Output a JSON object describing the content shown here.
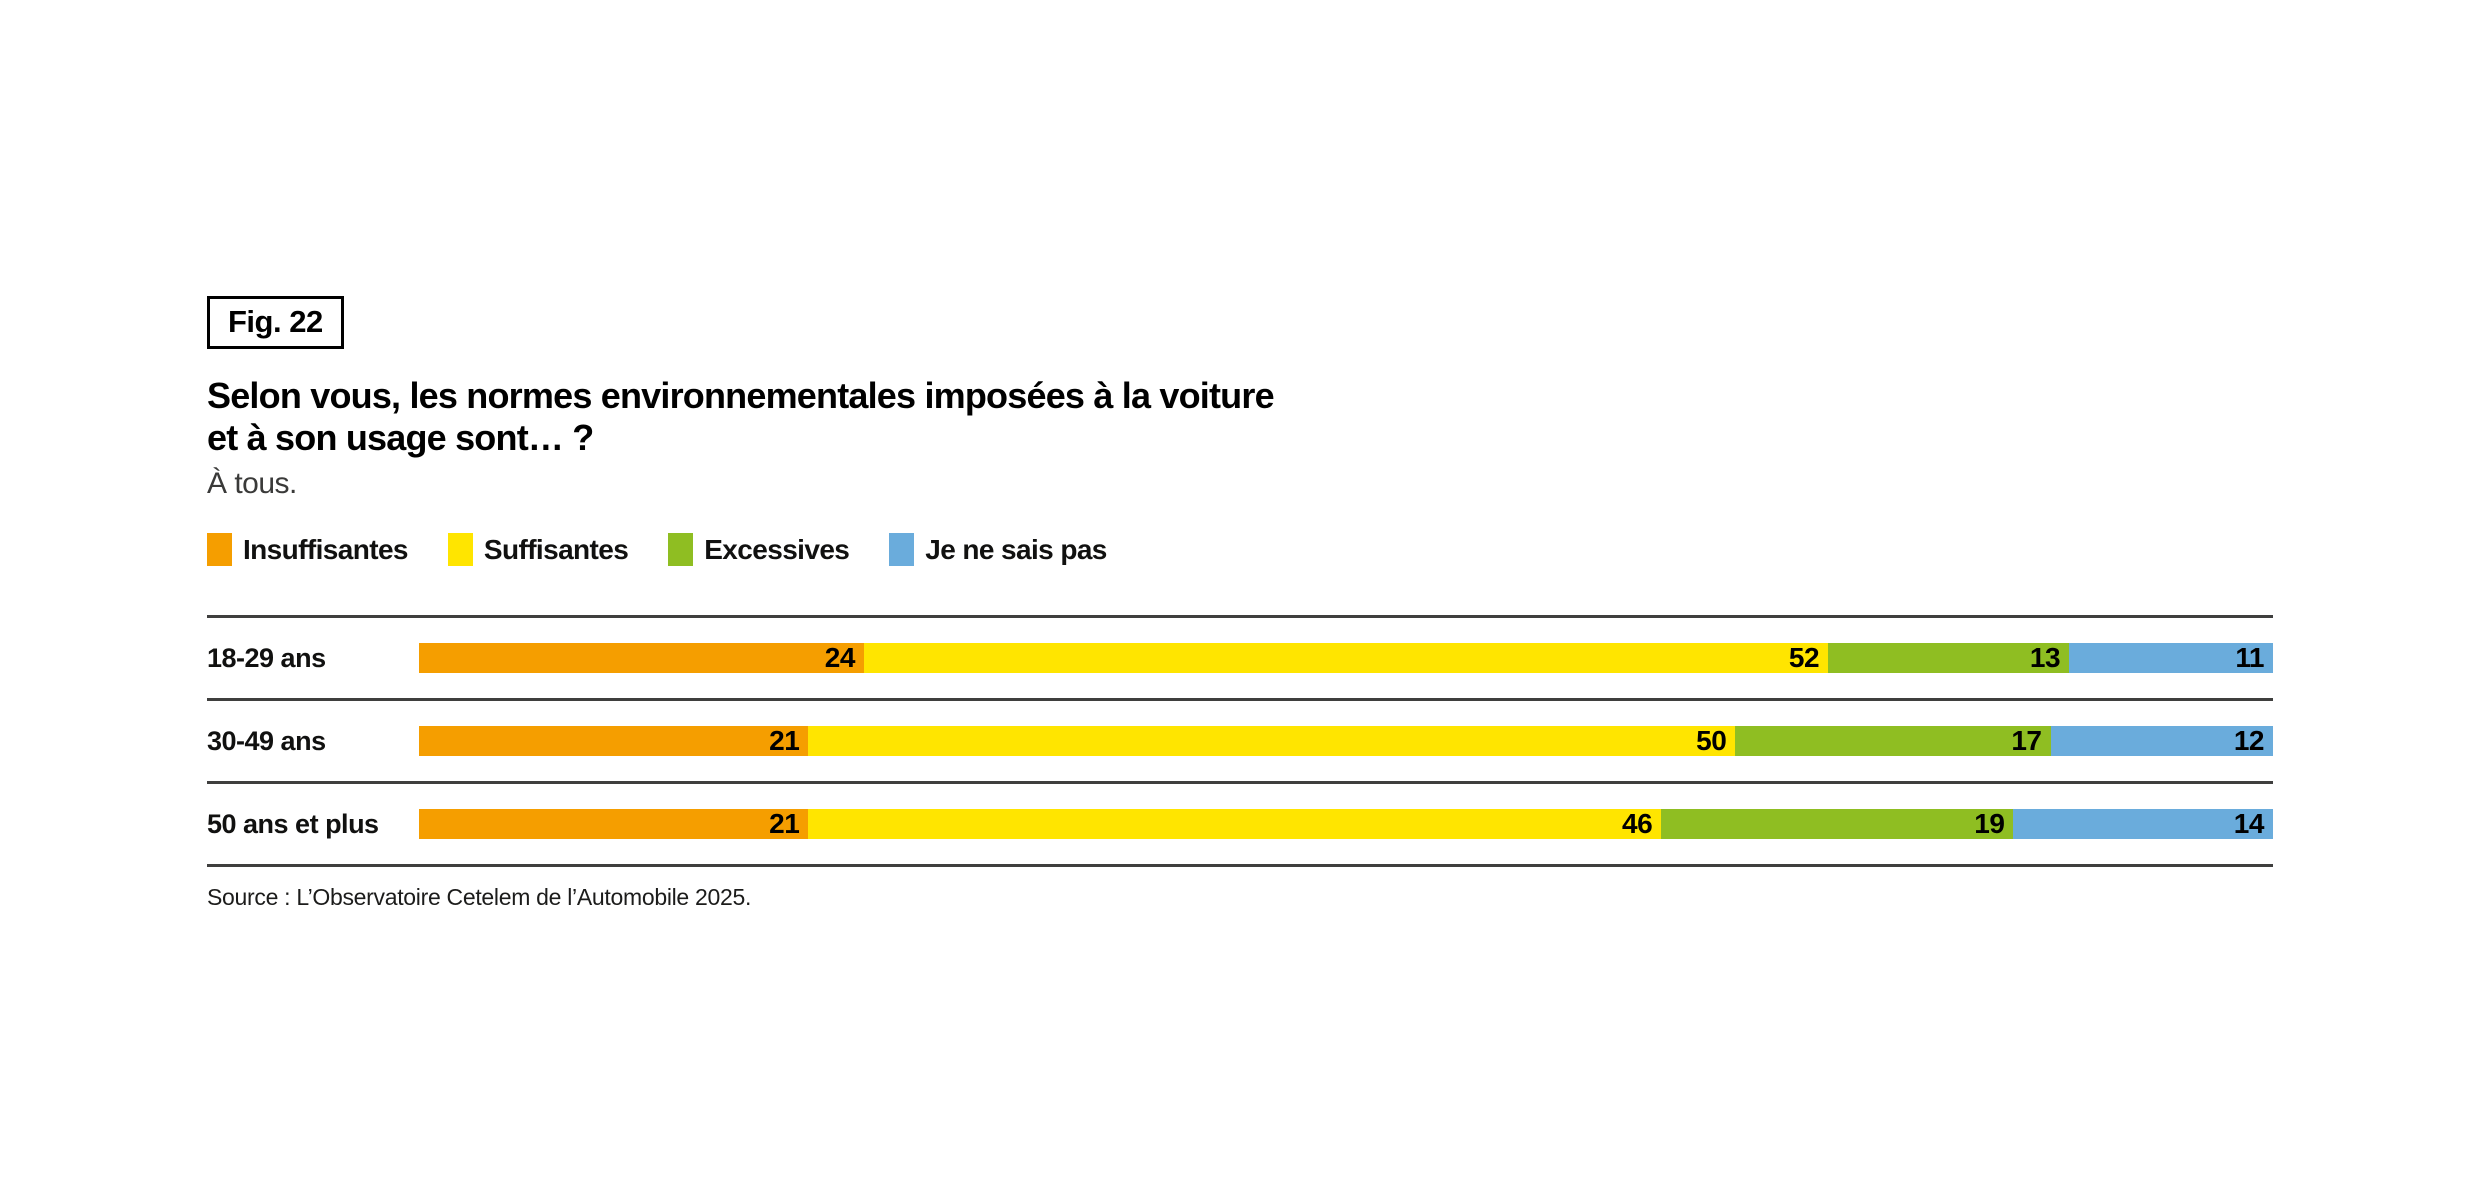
{
  "figure": {
    "label": "Fig. 22"
  },
  "title": {
    "line1": "Selon vous, les normes environnementales imposées à la voiture",
    "line2": "et à son usage sont… ?"
  },
  "subtitle": "À tous.",
  "source": "Source : L’Observatoire Cetelem de l’Automobile 2025.",
  "chart_data": {
    "type": "bar",
    "orientation": "horizontal-stacked",
    "unit": "percent",
    "xlim": [
      0,
      100
    ],
    "grid": false,
    "legend_position": "top",
    "value_labels": "inside-right",
    "categories": [
      "18-29 ans",
      "30-49 ans",
      "50 ans et plus"
    ],
    "series": [
      {
        "name": "Insuffisantes",
        "color": "#F59E00",
        "values": [
          24,
          21,
          21
        ]
      },
      {
        "name": "Suffisantes",
        "color": "#FFE500",
        "values": [
          52,
          50,
          46
        ]
      },
      {
        "name": "Excessives",
        "color": "#8FBE22",
        "values": [
          13,
          17,
          19
        ]
      },
      {
        "name": "Je ne sais pas",
        "color": "#6AACDC",
        "values": [
          11,
          12,
          14
        ]
      }
    ]
  }
}
